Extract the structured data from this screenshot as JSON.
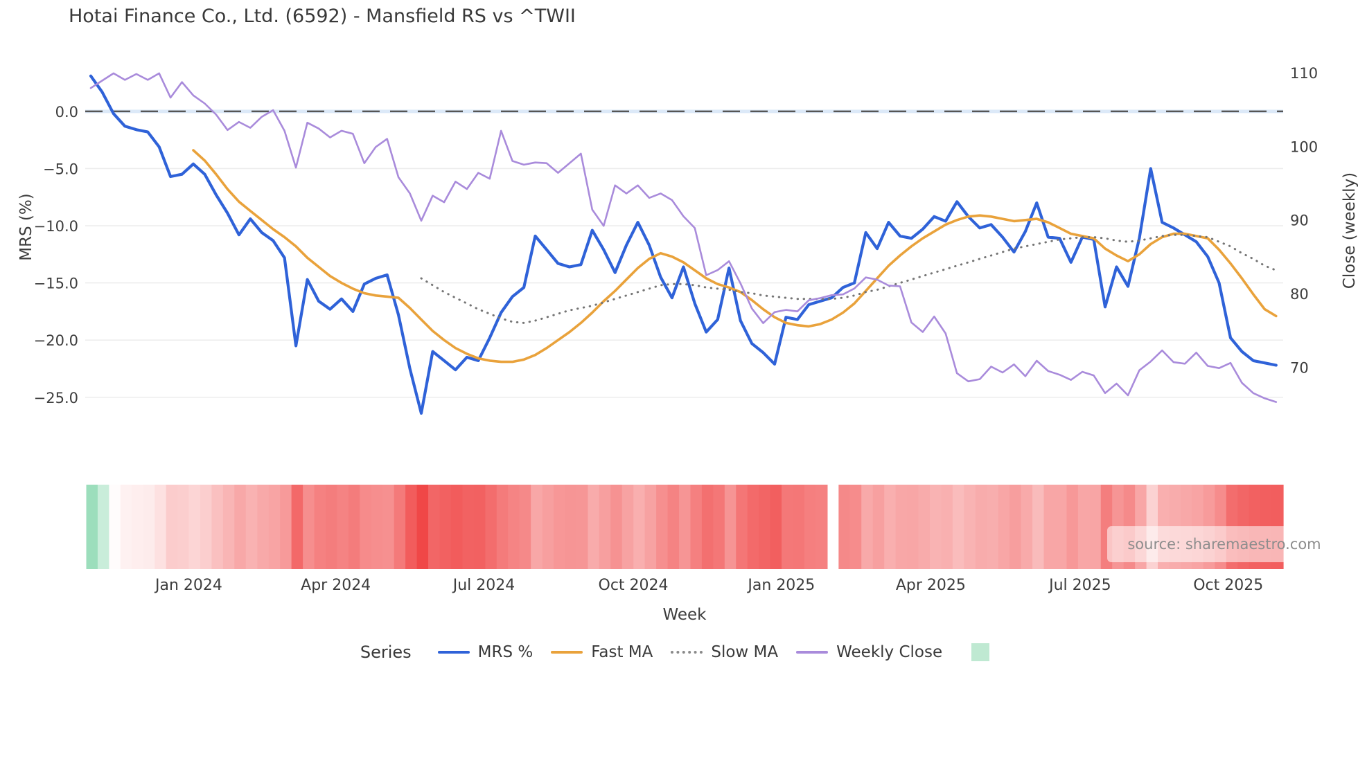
{
  "title": "Hotai Finance Co., Ltd. (6592) - Mansfield RS vs ^TWII",
  "source_note": "source: sharemaestro.com",
  "legend": {
    "title": "Series",
    "items": [
      {
        "label": "MRS %",
        "color": "#2f62d8",
        "style": "solid"
      },
      {
        "label": "Fast MA",
        "color": "#e9a23b",
        "style": "solid"
      },
      {
        "label": "Slow MA",
        "color": "#8a8a8a",
        "style": "dotted"
      },
      {
        "label": "Weekly Close",
        "color": "#a98bdb",
        "style": "solid"
      },
      {
        "label": "",
        "color": "#bfe9d2",
        "style": "square"
      }
    ]
  },
  "chart_data": {
    "type": "line",
    "subtype": "multi-axis line chart with weekly heatmap strip",
    "title": "Hotai Finance Co., Ltd. (6592) - Mansfield RS vs ^TWII",
    "xlabel": "Week",
    "x_unit": "week_index",
    "weeks": 105,
    "x_ticks": [
      {
        "label": "Jan 2024",
        "week": 8.6
      },
      {
        "label": "Apr 2024",
        "week": 21.5
      },
      {
        "label": "Jul 2024",
        "week": 34.5
      },
      {
        "label": "Oct 2024",
        "week": 47.6
      },
      {
        "label": "Jan 2025",
        "week": 60.6
      },
      {
        "label": "Apr 2025",
        "week": 73.7
      },
      {
        "label": "Jul 2025",
        "week": 86.8
      },
      {
        "label": "Oct 2025",
        "week": 99.8
      }
    ],
    "left_axis": {
      "label": "MRS (%)",
      "range": [
        5.2,
        -27.8
      ],
      "ticks": [
        {
          "label": "0.0",
          "value": 0
        },
        {
          "label": "−5.0",
          "value": -5
        },
        {
          "label": "−10.0",
          "value": -10
        },
        {
          "label": "−15.0",
          "value": -15
        },
        {
          "label": "−20.0",
          "value": -20
        },
        {
          "label": "−25.0",
          "value": -25
        }
      ],
      "zero_line": {
        "style": "dashed",
        "color": "#555555",
        "band_color": "#dce9f8"
      },
      "grid": true
    },
    "right_axis": {
      "label": "Close (weekly)",
      "range": [
        112.8,
        61.6
      ],
      "ticks": [
        {
          "label": "110",
          "value": 110
        },
        {
          "label": "100",
          "value": 100
        },
        {
          "label": "90",
          "value": 90
        },
        {
          "label": "80",
          "value": 80
        },
        {
          "label": "70",
          "value": 70
        }
      ],
      "grid": false
    },
    "series": [
      {
        "name": "MRS %",
        "axis": "left",
        "color": "#2f62d8",
        "width": 4.2,
        "dash": "solid",
        "values": [
          3.1,
          1.7,
          -0.2,
          -1.3,
          -1.6,
          -1.8,
          -3.1,
          -5.7,
          -5.5,
          -4.6,
          -5.5,
          -7.3,
          -8.9,
          -10.8,
          -9.4,
          -10.6,
          -11.3,
          -12.8,
          -20.5,
          -14.7,
          -16.6,
          -17.3,
          -16.4,
          -17.5,
          -15.1,
          -14.6,
          -14.3,
          -17.8,
          -22.5,
          -26.4,
          -21.0,
          -21.8,
          -22.6,
          -21.5,
          -21.8,
          -19.8,
          -17.6,
          -16.2,
          -15.4,
          -10.9,
          -12.1,
          -13.3,
          -13.6,
          -13.4,
          -10.4,
          -12.1,
          -14.1,
          -11.7,
          -9.7,
          -11.7,
          -14.5,
          -16.3,
          -13.6,
          -16.8,
          -19.3,
          -18.2,
          -13.7,
          -18.3,
          -20.3,
          -21.1,
          -22.1,
          -18.0,
          -18.2,
          -16.9,
          -16.6,
          -16.3,
          -15.4,
          -15.0,
          -10.6,
          -12.0,
          -9.7,
          -10.9,
          -11.1,
          -10.3,
          -9.2,
          -9.6,
          -7.9,
          -9.2,
          -10.2,
          -9.9,
          -11.0,
          -12.3,
          -10.5,
          -8.0,
          -11.0,
          -11.1,
          -13.2,
          -11.0,
          -11.2,
          -17.1,
          -13.6,
          -15.3,
          -11.1,
          -5.0,
          -9.7,
          -10.2,
          -10.8,
          -11.4,
          -12.7,
          -15.0,
          -19.8,
          -21.0,
          -21.8,
          -22.0,
          -22.2
        ]
      },
      {
        "name": "Fast MA",
        "axis": "left",
        "color": "#e9a23b",
        "width": 3.6,
        "dash": "solid",
        "values": [
          null,
          null,
          null,
          null,
          null,
          null,
          null,
          null,
          null,
          -3.4,
          -4.3,
          -5.5,
          -6.8,
          -7.9,
          -8.7,
          -9.5,
          -10.3,
          -11.0,
          -11.8,
          -12.8,
          -13.6,
          -14.4,
          -15.0,
          -15.5,
          -15.9,
          -16.1,
          -16.2,
          -16.3,
          -17.2,
          -18.2,
          -19.2,
          -20.0,
          -20.7,
          -21.2,
          -21.6,
          -21.8,
          -21.9,
          -21.9,
          -21.7,
          -21.3,
          -20.7,
          -20.0,
          -19.3,
          -18.5,
          -17.6,
          -16.6,
          -15.7,
          -14.7,
          -13.7,
          -12.9,
          -12.4,
          -12.7,
          -13.2,
          -13.9,
          -14.6,
          -15.1,
          -15.4,
          -15.8,
          -16.5,
          -17.3,
          -18.0,
          -18.5,
          -18.7,
          -18.8,
          -18.6,
          -18.2,
          -17.6,
          -16.8,
          -15.7,
          -14.6,
          -13.5,
          -12.6,
          -11.8,
          -11.1,
          -10.5,
          -9.9,
          -9.5,
          -9.2,
          -9.1,
          -9.2,
          -9.4,
          -9.6,
          -9.5,
          -9.4,
          -9.7,
          -10.2,
          -10.7,
          -10.9,
          -11.1,
          -12.0,
          -12.6,
          -13.1,
          -12.5,
          -11.6,
          -11.0,
          -10.7,
          -10.7,
          -10.9,
          -11.1,
          -12.1,
          -13.3,
          -14.6,
          -16.0,
          -17.3,
          -17.9
        ]
      },
      {
        "name": "Slow MA",
        "axis": "left",
        "color": "#757575",
        "width": 3.0,
        "dash": "dotted",
        "values": [
          null,
          null,
          null,
          null,
          null,
          null,
          null,
          null,
          null,
          null,
          null,
          null,
          null,
          null,
          null,
          null,
          null,
          null,
          null,
          null,
          null,
          null,
          null,
          null,
          null,
          null,
          null,
          null,
          null,
          -14.6,
          -15.2,
          -15.8,
          -16.3,
          -16.8,
          -17.3,
          -17.7,
          -18.1,
          -18.4,
          -18.5,
          -18.3,
          -18.0,
          -17.7,
          -17.4,
          -17.2,
          -17.0,
          -16.7,
          -16.4,
          -16.1,
          -15.8,
          -15.5,
          -15.2,
          -15.1,
          -15.1,
          -15.2,
          -15.4,
          -15.5,
          -15.6,
          -15.8,
          -15.9,
          -16.1,
          -16.2,
          -16.3,
          -16.4,
          -16.4,
          -16.4,
          -16.4,
          -16.3,
          -16.1,
          -15.8,
          -15.6,
          -15.3,
          -15.0,
          -14.7,
          -14.4,
          -14.1,
          -13.8,
          -13.5,
          -13.2,
          -12.9,
          -12.6,
          -12.3,
          -12.0,
          -11.8,
          -11.6,
          -11.4,
          -11.2,
          -11.1,
          -11.0,
          -11.0,
          -11.1,
          -11.3,
          -11.4,
          -11.3,
          -11.1,
          -10.9,
          -10.8,
          -10.8,
          -10.9,
          -11.0,
          -11.4,
          -11.8,
          -12.4,
          -12.9,
          -13.5,
          -13.9
        ]
      },
      {
        "name": "Weekly Close",
        "axis": "right",
        "color": "#a98bdb",
        "width": 2.6,
        "dash": "solid",
        "values": [
          107.9,
          108.9,
          109.9,
          109.0,
          109.8,
          109.0,
          109.9,
          106.6,
          108.7,
          106.9,
          105.8,
          104.3,
          102.2,
          103.3,
          102.5,
          104.0,
          104.9,
          102.1,
          97.1,
          103.2,
          102.4,
          101.2,
          102.1,
          101.7,
          97.7,
          99.9,
          101.0,
          95.8,
          93.6,
          89.9,
          93.3,
          92.4,
          95.2,
          94.2,
          96.4,
          95.6,
          102.1,
          98.0,
          97.5,
          97.8,
          97.7,
          96.4,
          97.7,
          99.0,
          91.4,
          89.2,
          94.7,
          93.6,
          94.7,
          93.0,
          93.6,
          92.7,
          90.5,
          88.9,
          82.5,
          83.2,
          84.4,
          81.4,
          78.0,
          76.0,
          77.5,
          77.8,
          77.6,
          79.1,
          79.4,
          79.8,
          79.9,
          80.7,
          82.2,
          81.9,
          81.1,
          81.0,
          76.1,
          74.8,
          76.9,
          74.6,
          69.2,
          68.1,
          68.4,
          70.1,
          69.3,
          70.4,
          68.8,
          70.9,
          69.5,
          69.0,
          68.3,
          69.4,
          68.9,
          66.5,
          67.8,
          66.2,
          69.6,
          70.8,
          72.3,
          70.7,
          70.5,
          72.0,
          70.2,
          69.9,
          70.6,
          67.9,
          66.5,
          65.8,
          65.3
        ]
      }
    ],
    "heatmap_strip": {
      "description": "one cell per week colored by MRS % value: green = positive, red intensity = depth of negative",
      "source_series": "MRS %",
      "missing_weeks": [
        65
      ],
      "positive_color": "#7fd4a8",
      "negative_color": "#f04747",
      "positive_full_scale": 4,
      "negative_full_scale": 26
    },
    "legend_position": "bottom",
    "grid": "horizontal only"
  }
}
